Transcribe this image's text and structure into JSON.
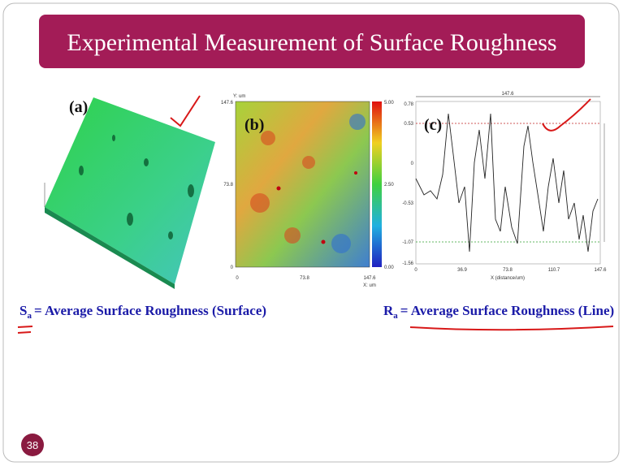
{
  "header": {
    "title": "Experimental Measurement of Surface Roughness"
  },
  "figures": [
    {
      "label": "(a)"
    },
    {
      "label": "(b)",
      "y_axis_label": "Y: um",
      "y_ticks": [
        "147.6",
        "73.8",
        "0"
      ],
      "x_ticks": [
        "0",
        "73.8",
        "147.6"
      ],
      "x_axis_label": "X: um",
      "colorbar_ticks": [
        "5.00",
        "2.50",
        "0.00"
      ]
    },
    {
      "label": "(c)",
      "top_label": "147.6",
      "y_ticks": [
        "0.78",
        "0.53",
        "0",
        "-0.53",
        "-1.07",
        "-1.56"
      ],
      "x_ticks": [
        "0",
        "36.9",
        "73.8",
        "110.7",
        "147.6"
      ],
      "x_axis_label": "X (distance/um)"
    }
  ],
  "captions": [
    {
      "symbol": "S",
      "subscript": "a",
      "text": "= Average Surface Roughness (Surface)"
    },
    {
      "symbol": "R",
      "subscript": "a",
      "text": "= Average Surface Roughness (Line)"
    }
  ],
  "page_number": "38"
}
